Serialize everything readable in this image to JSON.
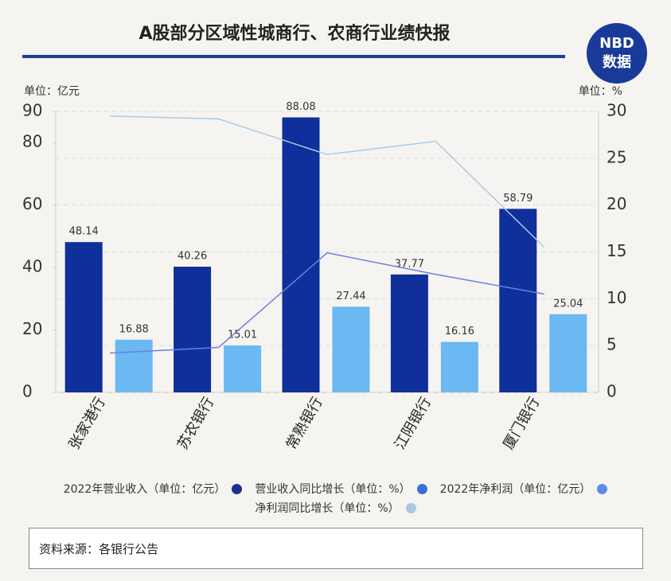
{
  "chart_data": {
    "type": "bar_line",
    "title": "A股部分区域性城商行、农商行业绩快报",
    "y_label": "单位：亿元",
    "y2_label": "单位：%",
    "categories": [
      "张家港行",
      "苏农银行",
      "常熟银行",
      "江阴银行",
      "厦门银行"
    ],
    "ylim": [
      0,
      90
    ],
    "yticks": [
      0,
      20,
      40,
      60,
      80,
      90
    ],
    "y2lim": [
      0,
      30
    ],
    "y2ticks": [
      0,
      5,
      10,
      15,
      20,
      25,
      30
    ],
    "series": [
      {
        "name": "2022年营业收入（单位：亿元）",
        "kind": "bar",
        "color": "#0f2f9a",
        "legend_color": "#1a2f8f",
        "values": [
          48.14,
          40.26,
          88.08,
          37.77,
          58.79
        ]
      },
      {
        "name": "营业收入同比增长（单位：%）",
        "kind": "line",
        "axis": "y2",
        "color": "#6b7fe0",
        "legend_color": "#3a6fd8",
        "values": [
          4.2,
          4.8,
          14.9,
          12.6,
          10.5
        ]
      },
      {
        "name": "2022年净利润（单位：亿元）",
        "kind": "bar",
        "color": "#6bb8f2",
        "legend_color": "#5b8fe0",
        "values": [
          16.88,
          15.01,
          27.44,
          16.16,
          25.04
        ]
      },
      {
        "name": "净利润同比增长（单位：%）",
        "kind": "line",
        "axis": "y2",
        "color": "#a9cde8",
        "legend_color": "#a9c7e0",
        "values": [
          29.5,
          29.2,
          25.4,
          26.8,
          15.5
        ]
      }
    ],
    "source": "资料来源：各银行公告"
  },
  "logo": {
    "top": "NBD",
    "bottom": "数据"
  }
}
